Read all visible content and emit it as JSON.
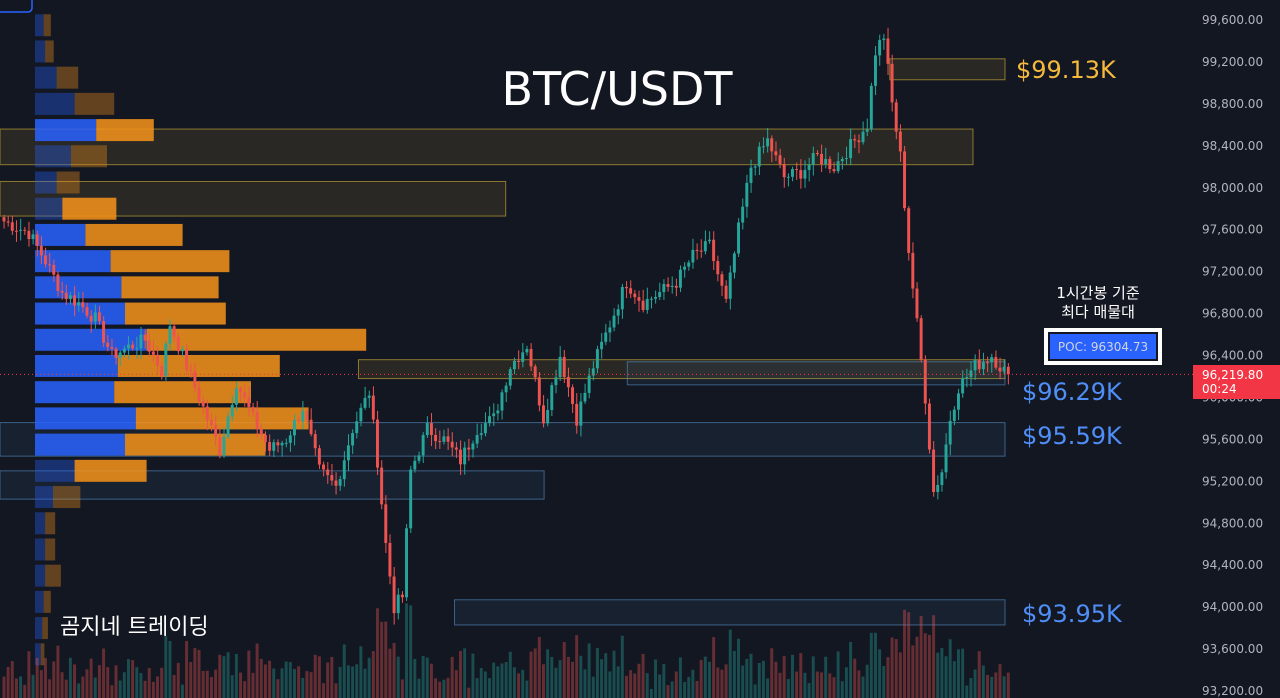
{
  "colors": {
    "background": "#131722",
    "up": "#26a69a",
    "down": "#ef5350",
    "vp_up": "#2962ff",
    "vp_down": "#f7931a",
    "supply_zone": "#e9c23a",
    "demand_zone": "#5b9bd5",
    "current_price": "#f23645",
    "poc_box": "#2962ff"
  },
  "chart_data": {
    "type": "candlestick",
    "title": "BTC/USDT",
    "timeframe_note": [
      "1시간봉 기준",
      "최다 매물대"
    ],
    "watermark": "곰지네 트레이딩",
    "y_axis": {
      "ticks": [
        "99,600.00",
        "99,200.00",
        "98,800.00",
        "98,400.00",
        "98,000.00",
        "97,600.00",
        "97,200.00",
        "96,800.00",
        "96,400.00",
        "96,000.00",
        "95,600.00",
        "95,200.00",
        "94,800.00",
        "94,400.00",
        "94,000.00",
        "93,600.00",
        "93,200.00"
      ],
      "range": [
        93200,
        99600
      ],
      "position": "right"
    },
    "current_price": {
      "value": "96,219.80",
      "countdown": "00:24"
    },
    "poc": {
      "label": "POC: 96304.73",
      "value": 96304.73
    },
    "levels": [
      {
        "label": "$99.13K",
        "value": 99130,
        "kind": "supply"
      },
      {
        "label": "$96.29K",
        "value": 96290,
        "kind": "demand"
      },
      {
        "label": "$95.59K",
        "value": 95590,
        "kind": "demand"
      },
      {
        "label": "$93.95K",
        "value": 93950,
        "kind": "demand"
      }
    ],
    "zones": [
      {
        "kind": "supply",
        "low": 99030,
        "high": 99230,
        "start": 0.695,
        "end": 0.785
      },
      {
        "kind": "supply",
        "low": 98220,
        "high": 98560,
        "start": 0.0,
        "end": 0.76
      },
      {
        "kind": "supply",
        "low": 97730,
        "high": 98060,
        "start": 0.0,
        "end": 0.395
      },
      {
        "kind": "supply",
        "low": 96180,
        "high": 96360,
        "start": 0.28,
        "end": 0.785
      },
      {
        "kind": "demand",
        "low": 96120,
        "high": 96340,
        "start": 0.49,
        "end": 0.785
      },
      {
        "kind": "demand",
        "low": 95440,
        "high": 95760,
        "start": 0.0,
        "end": 0.785
      },
      {
        "kind": "demand",
        "low": 95030,
        "high": 95300,
        "start": 0.0,
        "end": 0.425
      },
      {
        "kind": "demand",
        "low": 93830,
        "high": 94070,
        "start": 0.355,
        "end": 0.785
      }
    ],
    "volume_profile": [
      {
        "price": 99550,
        "up": 0.12,
        "down": 0.1
      },
      {
        "price": 99300,
        "up": 0.14,
        "down": 0.12
      },
      {
        "price": 99050,
        "up": 0.3,
        "down": 0.3
      },
      {
        "price": 98800,
        "up": 0.55,
        "down": 0.55
      },
      {
        "price": 98550,
        "up": 0.85,
        "down": 0.8
      },
      {
        "price": 98300,
        "up": 0.5,
        "down": 0.5
      },
      {
        "price": 98050,
        "up": 0.3,
        "down": 0.32
      },
      {
        "price": 97800,
        "up": 0.38,
        "down": 0.75
      },
      {
        "price": 97550,
        "up": 0.7,
        "down": 1.35
      },
      {
        "price": 97300,
        "up": 1.05,
        "down": 1.65
      },
      {
        "price": 97050,
        "up": 1.2,
        "down": 1.35
      },
      {
        "price": 96800,
        "up": 1.25,
        "down": 1.4
      },
      {
        "price": 96550,
        "up": 1.55,
        "down": 3.05
      },
      {
        "price": 96300,
        "up": 1.15,
        "down": 2.25
      },
      {
        "price": 96050,
        "up": 1.1,
        "down": 1.9
      },
      {
        "price": 95800,
        "up": 1.4,
        "down": 2.4
      },
      {
        "price": 95550,
        "up": 1.25,
        "down": 1.95
      },
      {
        "price": 95300,
        "up": 0.55,
        "down": 1.0
      },
      {
        "price": 95050,
        "up": 0.25,
        "down": 0.38
      },
      {
        "price": 94800,
        "up": 0.14,
        "down": 0.14
      },
      {
        "price": 94550,
        "up": 0.14,
        "down": 0.14
      },
      {
        "price": 94300,
        "up": 0.14,
        "down": 0.22
      },
      {
        "price": 94050,
        "up": 0.12,
        "down": 0.1
      },
      {
        "price": 93800,
        "up": 0.1,
        "down": 0.08
      },
      {
        "price": 93550,
        "up": 0.08,
        "down": 0.05
      }
    ],
    "waypoints": [
      [
        0,
        97680
      ],
      [
        6,
        97570
      ],
      [
        10,
        97300
      ],
      [
        14,
        97000
      ],
      [
        18,
        96900
      ],
      [
        22,
        96750
      ],
      [
        26,
        96400
      ],
      [
        30,
        96480
      ],
      [
        34,
        96550
      ],
      [
        38,
        96250
      ],
      [
        40,
        96700
      ],
      [
        44,
        96300
      ],
      [
        48,
        95900
      ],
      [
        52,
        95500
      ],
      [
        56,
        96150
      ],
      [
        60,
        95800
      ],
      [
        64,
        95500
      ],
      [
        68,
        95600
      ],
      [
        72,
        95900
      ],
      [
        76,
        95300
      ],
      [
        80,
        95150
      ],
      [
        84,
        95700
      ],
      [
        88,
        96050
      ],
      [
        90,
        95400
      ],
      [
        92,
        94600
      ],
      [
        94,
        94000
      ],
      [
        96,
        94100
      ],
      [
        98,
        95300
      ],
      [
        102,
        95700
      ],
      [
        106,
        95600
      ],
      [
        110,
        95400
      ],
      [
        114,
        95700
      ],
      [
        118,
        95800
      ],
      [
        122,
        96300
      ],
      [
        126,
        96500
      ],
      [
        130,
        95800
      ],
      [
        134,
        96400
      ],
      [
        138,
        95800
      ],
      [
        142,
        96300
      ],
      [
        146,
        96700
      ],
      [
        150,
        97100
      ],
      [
        154,
        96900
      ],
      [
        158,
        97000
      ],
      [
        162,
        97100
      ],
      [
        166,
        97350
      ],
      [
        170,
        97450
      ],
      [
        174,
        96900
      ],
      [
        177,
        97600
      ],
      [
        180,
        98200
      ],
      [
        184,
        98450
      ],
      [
        188,
        98100
      ],
      [
        192,
        98150
      ],
      [
        196,
        98300
      ],
      [
        200,
        98200
      ],
      [
        204,
        98400
      ],
      [
        208,
        98600
      ],
      [
        210,
        99300
      ],
      [
        212,
        99450
      ],
      [
        214,
        98800
      ],
      [
        216,
        98300
      ],
      [
        218,
        97400
      ],
      [
        220,
        96700
      ],
      [
        222,
        96000
      ],
      [
        224,
        95100
      ],
      [
        226,
        95300
      ],
      [
        228,
        95800
      ],
      [
        230,
        96100
      ],
      [
        234,
        96300
      ],
      [
        238,
        96400
      ],
      [
        240,
        96300
      ],
      [
        242,
        96220
      ]
    ]
  }
}
